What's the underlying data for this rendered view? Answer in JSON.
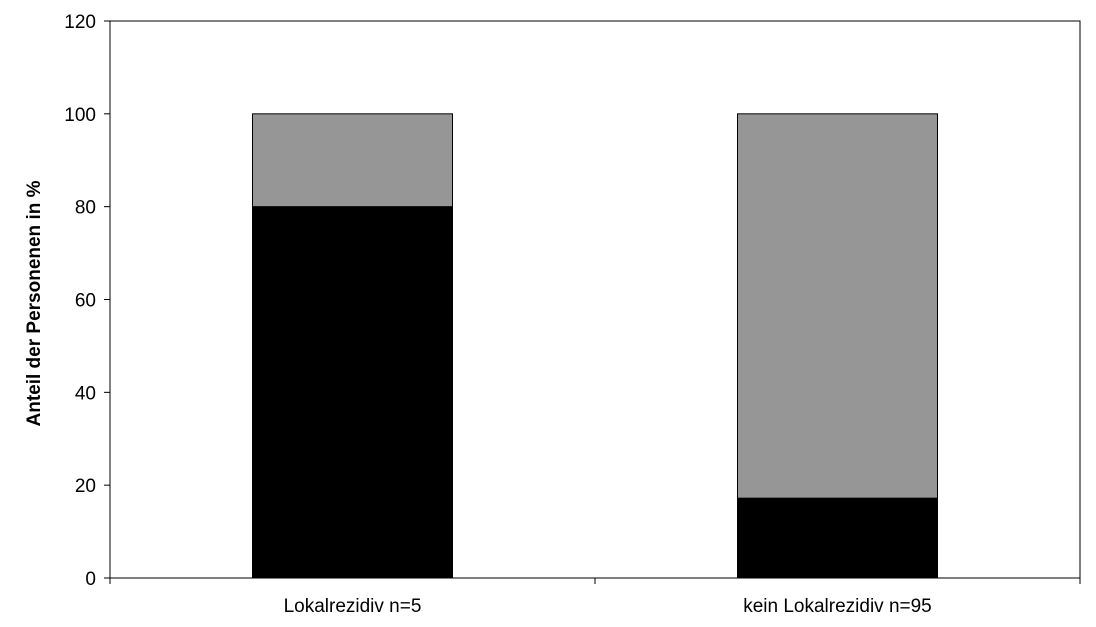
{
  "chart_data": {
    "type": "bar",
    "stacked": true,
    "categories": [
      "Lokalrezidiv n=5",
      "kein Lokalrezidiv n=95"
    ],
    "series": [
      {
        "values": [
          80,
          17.2
        ],
        "color": "#000000"
      },
      {
        "values": [
          20,
          82.8
        ],
        "color": "#969696"
      }
    ],
    "title": "",
    "xlabel": "",
    "ylabel": "Anteil der Personenen in %",
    "ylim": [
      0,
      120
    ],
    "yticks": [
      0,
      20,
      40,
      60,
      80,
      100,
      120
    ],
    "yticks_text": [
      "0",
      "20",
      "40",
      "60",
      "80",
      "100",
      "120"
    ],
    "grid": false,
    "legend": "none"
  }
}
